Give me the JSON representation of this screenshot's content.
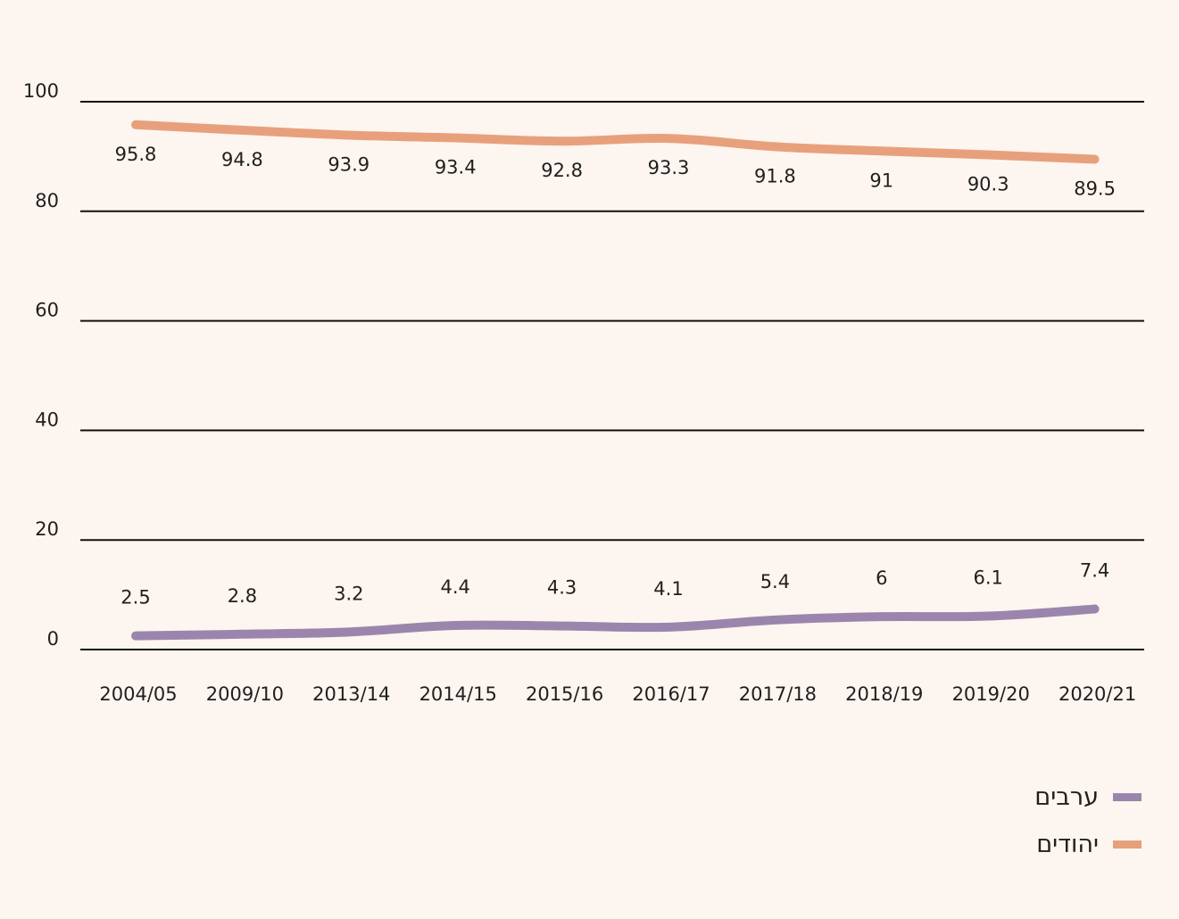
{
  "chart_data": {
    "type": "line",
    "categories": [
      "2004/05",
      "2009/10",
      "2013/14",
      "2014/15",
      "2015/16",
      "2016/17",
      "2017/18",
      "2018/19",
      "2019/20",
      "2020/21"
    ],
    "series": [
      {
        "name": "יהודים",
        "color": "#e8a07c",
        "values": [
          95.8,
          94.8,
          93.9,
          93.4,
          92.8,
          93.3,
          91.8,
          91,
          90.3,
          89.5
        ]
      },
      {
        "name": "ערבים",
        "color": "#9a86ad",
        "values": [
          2.5,
          2.8,
          3.2,
          4.4,
          4.3,
          4.1,
          5.4,
          6,
          6.1,
          7.4
        ]
      }
    ],
    "yticks": [
      0,
      20,
      40,
      60,
      80,
      100
    ],
    "ylim": [
      0,
      100
    ],
    "grid": true,
    "legend_position": "bottom-right",
    "legend": [
      {
        "label": "ערבים",
        "color": "#9a86ad"
      },
      {
        "label": "יהודים",
        "color": "#e8a07c"
      }
    ]
  }
}
